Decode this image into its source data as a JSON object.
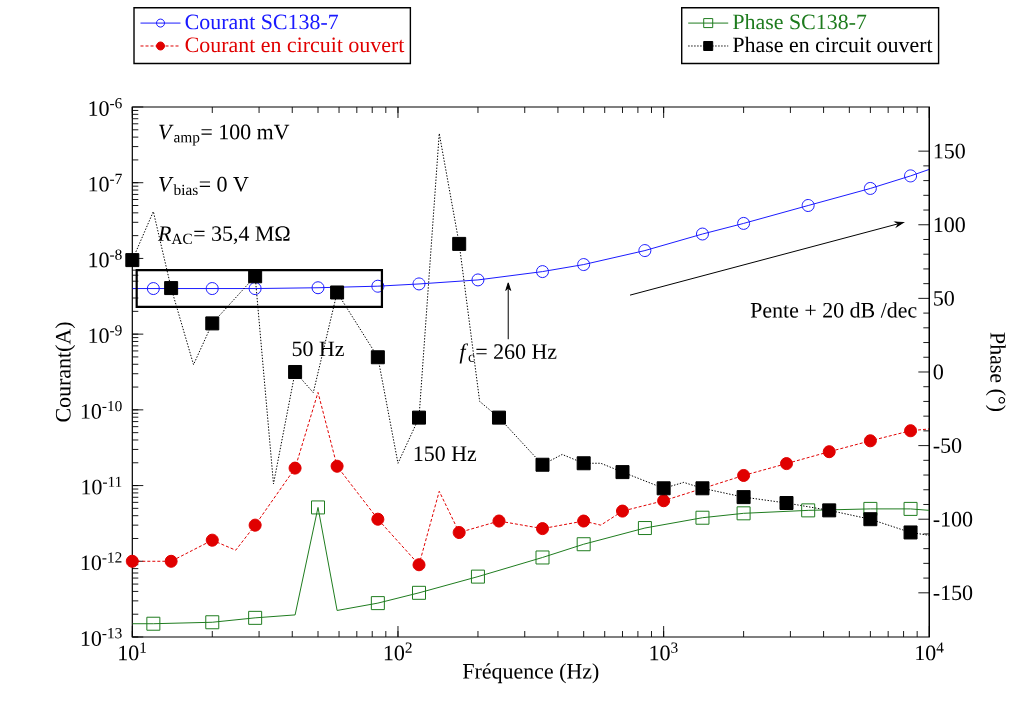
{
  "chart_data": {
    "type": "line",
    "xlabel": "Fréquence (Hz)",
    "ylabel": "Courant(A)",
    "y2label": "Phase (°)",
    "log": "xy",
    "legend": "top",
    "xlim": [
      10,
      10000
    ],
    "xticks": [
      {
        "value": 10,
        "label": "10$^{1}$"
      },
      {
        "value": 100,
        "label": "10$^{2}$"
      },
      {
        "value": 1000,
        "label": "10$^{3}$"
      },
      {
        "value": 10000,
        "label": "10$^{4}$"
      }
    ],
    "ylim": [
      1e-13,
      1e-06
    ],
    "yticks": [
      {
        "value": 1e-13,
        "label": "10$^{-13}$"
      },
      {
        "value": 1e-12,
        "label": "10$^{-12}$"
      },
      {
        "value": 1e-11,
        "label": "10$^{-11}$"
      },
      {
        "value": 1e-10,
        "label": "10$^{-10}$"
      },
      {
        "value": 1e-09,
        "label": "10$^{-9}$"
      },
      {
        "value": 1e-08,
        "label": "10$^{-8}$"
      },
      {
        "value": 1e-07,
        "label": "10$^{-7}$"
      },
      {
        "value": 1e-06,
        "label": "10$^{-6}$"
      }
    ],
    "y2lim": [
      -180,
      180
    ],
    "y2ticks": [
      -150,
      -100,
      -50,
      0,
      50,
      100,
      150
    ],
    "series": [
      {
        "color": "#1a1aff",
        "marker": "none",
        "line_style": "solid",
        "x": [
          10,
          12,
          20,
          29,
          50,
          84,
          120,
          200,
          350,
          500,
          850,
          1400,
          2000,
          3500,
          6000,
          8500,
          10000
        ],
        "values": [
          4e-09,
          4e-09,
          4e-09,
          4e-09,
          4.1e-09,
          4.3e-09,
          4.6e-09,
          5.2e-09,
          6.7e-09,
          8.3e-09,
          1.27e-08,
          2.1e-08,
          2.9e-08,
          5e-08,
          8.4e-08,
          1.23e-07,
          1.5e-07
        ]
      },
      {
        "color": "#e00000",
        "marker": "none",
        "line_style": "dashed",
        "x": [
          10,
          14,
          20,
          24.5,
          29,
          41,
          50,
          59,
          84,
          120,
          143,
          170,
          240,
          350,
          500,
          580,
          700,
          1000,
          2000,
          2900,
          4200,
          6000,
          8500,
          10000
        ],
        "values": [
          1e-12,
          1e-12,
          1.9e-12,
          1.4e-12,
          3e-12,
          1.7e-11,
          1.7e-10,
          1.8e-11,
          3.6e-12,
          9e-13,
          8.4e-12,
          2.4e-12,
          3.4e-12,
          2.7e-12,
          3.4e-12,
          3e-12,
          4.6e-12,
          6.3e-12,
          1.36e-11,
          1.95e-11,
          2.8e-11,
          3.9e-11,
          5.3e-11,
          5.6e-11
        ]
      },
      {
        "color": "#1e7b1e",
        "marker": "none",
        "line_style": "solid",
        "axis": "y2",
        "x": [
          10,
          12,
          20,
          29,
          41,
          50,
          59,
          84,
          120,
          200,
          350,
          500,
          850,
          1400,
          2000,
          3500,
          6000,
          8500,
          10000
        ],
        "values": [
          -171,
          -171,
          -170,
          -167,
          -165,
          -92,
          -162,
          -157,
          -150,
          -139,
          -126,
          -117,
          -106,
          -99,
          -96,
          -94,
          -93,
          -93,
          -94
        ]
      },
      {
        "color": "#000000",
        "marker": "none",
        "line_style": "dotted",
        "axis": "y2",
        "x": [
          10,
          12,
          14,
          17,
          20,
          29,
          34,
          41,
          48,
          59,
          84,
          100,
          120,
          143,
          170,
          203,
          240,
          350,
          415,
          500,
          580,
          700,
          1000,
          1190,
          1400,
          2000,
          2900,
          4200,
          6000,
          8500,
          10000
        ],
        "values": [
          76,
          109,
          57,
          5,
          33,
          65,
          -76,
          0,
          -14,
          54,
          10,
          -62,
          -31,
          162,
          87,
          -20,
          -31,
          -63,
          -56,
          -62,
          -62,
          -68,
          -79,
          -75,
          -79,
          -85,
          -89,
          -94,
          -100,
          -109,
          -111
        ]
      },
      {
        "type": "scatter",
        "name": "Courant SC138-7",
        "color": "#1a1aff",
        "marker": "circle",
        "line_style": "solid",
        "x": [
          12,
          20,
          29,
          50,
          84,
          120,
          200,
          350,
          500,
          850,
          1400,
          2000,
          3500,
          6000,
          8500
        ],
        "values": [
          4e-09,
          4e-09,
          4e-09,
          4.1e-09,
          4.3e-09,
          4.6e-09,
          5.2e-09,
          6.7e-09,
          8.3e-09,
          1.27e-08,
          2.1e-08,
          2.9e-08,
          5e-08,
          8.4e-08,
          1.23e-07
        ]
      },
      {
        "type": "scatter",
        "name": "Courant en circuit ouvert",
        "color": "#e00000",
        "marker": "circle",
        "line_style": "dashed",
        "x": [
          10,
          14,
          20,
          29,
          41,
          59,
          84,
          120,
          170,
          240,
          350,
          500,
          700,
          1000,
          1400,
          2000,
          2900,
          4200,
          6000,
          8500
        ],
        "values": [
          1e-12,
          1e-12,
          1.9e-12,
          3e-12,
          1.7e-11,
          1.8e-11,
          3.6e-12,
          9e-13,
          2.4e-12,
          3.4e-12,
          2.7e-12,
          3.4e-12,
          4.6e-12,
          6.3e-12,
          null,
          1.36e-11,
          1.95e-11,
          2.8e-11,
          3.9e-11,
          5.3e-11
        ]
      },
      {
        "type": "scatter",
        "name": "Phase SC138-7",
        "color": "#1e7b1e",
        "marker": "square",
        "line_style": "solid",
        "axis": "y2",
        "x": [
          12,
          20,
          29,
          50,
          84,
          120,
          200,
          350,
          500,
          850,
          1400,
          2000,
          3500,
          6000,
          8500
        ],
        "values": [
          -171,
          -170,
          -167,
          -92,
          -157,
          -150,
          -139,
          -126,
          -117,
          -106,
          -99,
          -96,
          -94,
          -93,
          -93
        ]
      },
      {
        "type": "scatter",
        "name": "Phase en circuit ouvert",
        "color": "#000000",
        "marker": "square",
        "line_style": "dotted",
        "axis": "y2",
        "x": [
          10,
          14,
          20,
          29,
          41,
          59,
          84,
          120,
          170,
          240,
          350,
          500,
          700,
          1000,
          1400,
          2000,
          2900,
          4200,
          6000,
          8500
        ],
        "values": [
          76,
          57,
          33,
          65,
          0,
          54,
          10,
          -31,
          87,
          -31,
          -63,
          -62,
          -68,
          -79,
          -79,
          -85,
          -89,
          -94,
          -100,
          -109
        ]
      }
    ],
    "annotations": [
      "*V*$_{amp}$= 100 mV",
      "*V*$_{bias}$= 0 V",
      "*R*$_{AC}$= 35,4 MΩ",
      "Pente + 20 dB /dec",
      {
        "text": "50 Hz",
        "x": 50,
        "y": 1.7e-10
      },
      {
        "text": "150 Hz",
        "x": 150,
        "y": 8.4e-12
      },
      {
        "text": "*f*$_{c}$= 260 Hz",
        "x": 260,
        "y": 5e-09
      }
    ]
  }
}
